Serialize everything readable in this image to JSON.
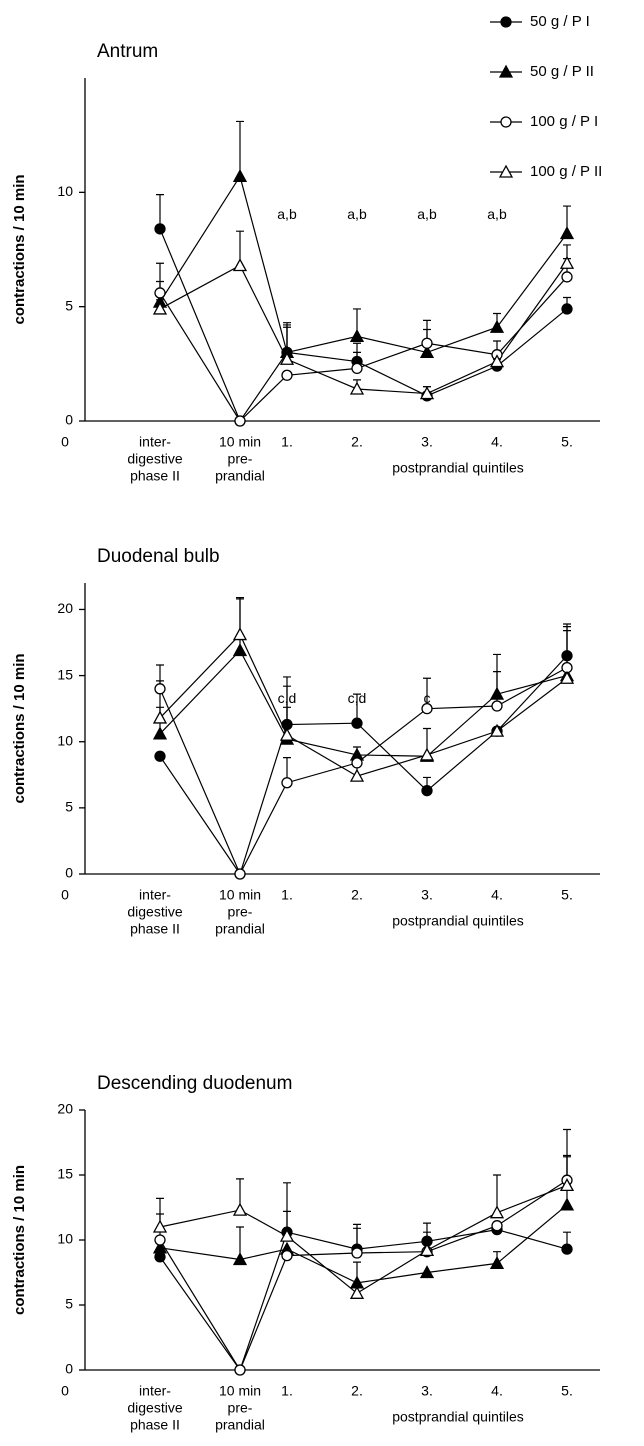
{
  "chart_data": [
    {
      "type": "line",
      "title": "Antrum",
      "y_label": "contractions / 10 min",
      "x_origin_label": "0",
      "categories": [
        [
          "inter-",
          "digestive",
          "phase II"
        ],
        [
          "10 min",
          "pre-",
          "prandial"
        ],
        "1.",
        "2.",
        "3.",
        "4.",
        "5."
      ],
      "group_label": "postprandial quintiles",
      "annotations": [
        null,
        null,
        "a,b",
        "a,b",
        "a,b",
        "a,b",
        null
      ],
      "ylim": [
        0,
        15
      ],
      "yticks": [
        0,
        5,
        10
      ],
      "series": [
        {
          "name": "50 g / P I",
          "marker": "circle",
          "filled": true,
          "color": "#000",
          "values": [
            8.4,
            0,
            3.0,
            2.6,
            1.1,
            2.4,
            4.9
          ],
          "errors": [
            1.5,
            null,
            1.2,
            0.8,
            0.4,
            0.3,
            0.5
          ]
        },
        {
          "name": "50 g / P II",
          "marker": "triangle",
          "filled": true,
          "color": "#000",
          "values": [
            5.2,
            10.7,
            3.0,
            3.7,
            3.0,
            4.1,
            8.2
          ],
          "errors": [
            0.9,
            2.4,
            1.3,
            1.2,
            1.4,
            0.6,
            1.2
          ]
        },
        {
          "name": "100 g / P I",
          "marker": "circle",
          "filled": false,
          "color": "#000",
          "values": [
            5.6,
            0,
            2.0,
            2.3,
            3.4,
            2.9,
            6.3
          ],
          "errors": [
            1.3,
            null,
            null,
            0.7,
            0.6,
            0.6,
            0.8
          ]
        },
        {
          "name": "100 g / P II",
          "marker": "triangle",
          "filled": false,
          "color": "#000",
          "values": [
            4.9,
            6.8,
            2.7,
            1.4,
            1.2,
            2.6,
            6.9
          ],
          "errors": [
            0.4,
            1.5,
            1.4,
            0.4,
            0.3,
            0.4,
            0.8
          ]
        }
      ]
    },
    {
      "type": "line",
      "title": "Duodenal bulb",
      "y_label": "contractions / 10 min",
      "x_origin_label": "0",
      "categories": [
        [
          "inter-",
          "digestive",
          "phase II"
        ],
        [
          "10 min",
          "pre-",
          "prandial"
        ],
        "1.",
        "2.",
        "3.",
        "4.",
        "5."
      ],
      "group_label": "postprandial quintiles",
      "annotations": [
        null,
        null,
        "c,d",
        "c,d",
        "c",
        null,
        null
      ],
      "ylim": [
        0,
        22
      ],
      "yticks": [
        0,
        5,
        10,
        15,
        20
      ],
      "series": [
        {
          "name": "50 g / P I",
          "marker": "circle",
          "filled": true,
          "color": "#000",
          "values": [
            8.9,
            0,
            11.3,
            11.4,
            6.3,
            10.8,
            16.5
          ],
          "errors": [
            null,
            null,
            3.6,
            2.2,
            1.0,
            null,
            2.4
          ]
        },
        {
          "name": "50 g / P II",
          "marker": "triangle",
          "filled": true,
          "color": "#000",
          "values": [
            10.6,
            16.9,
            10.2,
            9.0,
            8.9,
            13.6,
            15.0
          ],
          "errors": [
            2.0,
            4.0,
            2.4,
            null,
            null,
            3.0,
            3.7
          ]
        },
        {
          "name": "100 g / P I",
          "marker": "circle",
          "filled": false,
          "color": "#000",
          "values": [
            14.0,
            0,
            6.9,
            8.4,
            12.5,
            12.7,
            15.6
          ],
          "errors": [
            1.8,
            null,
            1.9,
            1.2,
            2.3,
            2.6,
            2.8
          ]
        },
        {
          "name": "100 g / P II",
          "marker": "triangle",
          "filled": false,
          "color": "#000",
          "values": [
            11.8,
            18.1,
            10.5,
            7.4,
            9.0,
            10.8,
            14.8
          ],
          "errors": [
            2.8,
            2.7,
            3.7,
            1.5,
            2.0,
            null,
            null
          ]
        }
      ]
    },
    {
      "type": "line",
      "title": "Descending duodenum",
      "y_label": "contractions / 10 min",
      "x_origin_label": "0",
      "categories": [
        [
          "inter-",
          "digestive",
          "phase II"
        ],
        [
          "10 min",
          "pre-",
          "prandial"
        ],
        "1.",
        "2.",
        "3.",
        "4.",
        "5."
      ],
      "group_label": "postprandial quintiles",
      "annotations": [
        null,
        null,
        null,
        null,
        null,
        null,
        null
      ],
      "ylim": [
        0,
        20
      ],
      "yticks": [
        0,
        5,
        10,
        15,
        20
      ],
      "series": [
        {
          "name": "50 g / P I",
          "marker": "circle",
          "filled": true,
          "color": "#000",
          "values": [
            8.7,
            0,
            10.6,
            9.3,
            9.9,
            10.8,
            9.3
          ],
          "errors": [
            null,
            null,
            3.8,
            1.9,
            1.4,
            null,
            1.3
          ]
        },
        {
          "name": "50 g / P II",
          "marker": "triangle",
          "filled": true,
          "color": "#000",
          "values": [
            9.4,
            8.5,
            9.3,
            6.7,
            7.5,
            8.2,
            12.7
          ],
          "errors": [
            null,
            2.5,
            null,
            1.6,
            null,
            0.9,
            3.7
          ]
        },
        {
          "name": "100 g / P I",
          "marker": "circle",
          "filled": false,
          "color": "#000",
          "values": [
            10.0,
            0,
            8.8,
            9.0,
            9.1,
            11.1,
            14.6
          ],
          "errors": [
            2.0,
            null,
            null,
            1.9,
            1.5,
            null,
            3.9
          ]
        },
        {
          "name": "100 g / P II",
          "marker": "triangle",
          "filled": false,
          "color": "#000",
          "values": [
            11.0,
            12.3,
            10.3,
            5.9,
            9.2,
            12.1,
            14.2
          ],
          "errors": [
            2.2,
            2.4,
            1.9,
            null,
            null,
            2.9,
            2.3
          ]
        }
      ]
    }
  ]
}
